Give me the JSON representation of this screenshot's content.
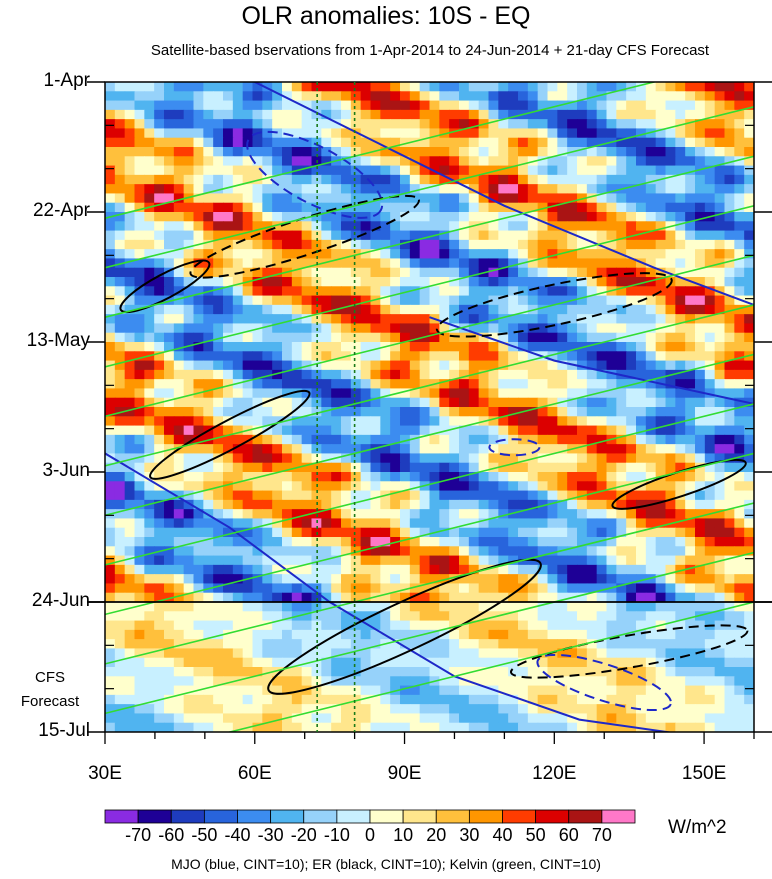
{
  "chart_data": {
    "type": "heatmap",
    "title": "OLR anomalies: 10S - EQ",
    "subtitle": "Satellite-based bservations from 1-Apr-2014 to 24-Jun-2014 + 21-day CFS Forecast",
    "x_axis": {
      "range": [
        30,
        160
      ],
      "ticks": [
        30,
        60,
        90,
        120,
        150
      ],
      "tick_labels": [
        "30E",
        "60E",
        "90E",
        "120E",
        "150E"
      ]
    },
    "y_axis": {
      "range_days": [
        0,
        105
      ],
      "ticks": [
        0,
        21,
        42,
        63,
        84,
        105
      ],
      "tick_labels": [
        "1-Apr",
        "22-Apr",
        "13-May",
        "3-Jun",
        "24-Jun",
        "15-Jul"
      ],
      "direction": "time increases downward"
    },
    "forecast_start_day": 84,
    "forecast_label": [
      "CFS",
      "Forecast"
    ],
    "reference_longitudes": [
      72.5,
      80
    ],
    "colorbar": {
      "units": "W/m^2",
      "levels": [
        -70,
        -60,
        -50,
        -40,
        -30,
        -20,
        -10,
        0,
        10,
        20,
        30,
        40,
        50,
        60,
        70
      ],
      "labels": [
        "-70",
        "-60",
        "-50",
        "-40",
        "-30",
        "-20",
        "-10",
        "0",
        "10",
        "20",
        "30",
        "40",
        "50",
        "60",
        "70"
      ],
      "colors": [
        "#8a2be2",
        "#1e0096",
        "#1e3cbe",
        "#2864dc",
        "#3c8cf0",
        "#50b4f0",
        "#96d2fa",
        "#c8f0ff",
        "#ffffcc",
        "#ffe68c",
        "#ffc03c",
        "#ff9600",
        "#ff3c00",
        "#dc0000",
        "#aa1414",
        "#ff78c8"
      ]
    },
    "contours": {
      "mjo": {
        "color": "#1e28c8",
        "cint": 10
      },
      "er": {
        "color": "#000000",
        "cint": 10
      },
      "kelvin": {
        "color": "#32dc32",
        "cint": 10
      }
    },
    "legend_text": "MJO (blue, CINT=10); ER (black, CINT=10); Kelvin (green, CINT=10)"
  }
}
